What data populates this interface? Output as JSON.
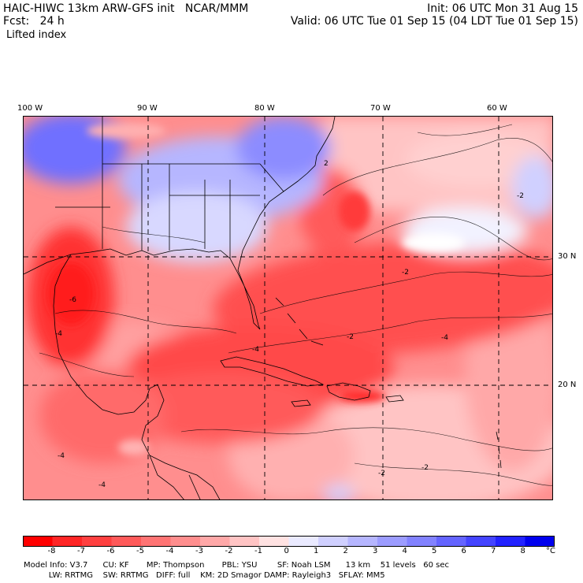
{
  "header": {
    "left_line1": "HAIC-HIWC 13km ARW-GFS init   NCAR/MMM",
    "left_line2": "Fcst:   24 h",
    "field": "Lifted index",
    "right_line1": "Init: 06 UTC Mon 31 Aug 15",
    "right_line2": "Valid: 06 UTC Tue 01 Sep 15 (04 LDT Tue 01 Sep 15)"
  },
  "map": {
    "lon_labels": [
      "100 W",
      "90 W",
      "80 W",
      "70 W",
      "60 W"
    ],
    "lat_labels": [
      "30 N",
      "20 N"
    ],
    "contour_labels": [
      "-2",
      "-4",
      "-6",
      "2"
    ]
  },
  "colorbar": {
    "unit": "°C",
    "levels": [
      "-8",
      "-7",
      "-6",
      "-5",
      "-4",
      "-3",
      "-2",
      "-1",
      "0",
      "1",
      "2",
      "3",
      "4",
      "5",
      "6",
      "7",
      "8"
    ],
    "colors": [
      "#ff0000",
      "#ff2626",
      "#ff4040",
      "#ff5a5a",
      "#ff7474",
      "#ff8e8e",
      "#ffa8a8",
      "#ffc4c4",
      "#ffe2e2",
      "#eaeaff",
      "#d0d0ff",
      "#b6b6ff",
      "#9c9cff",
      "#8282ff",
      "#6464ff",
      "#4444ff",
      "#2222ff",
      "#0000ee"
    ]
  },
  "footer": {
    "line1": "Model Info: V3.7      CU: KF       MP: Thompson       PBL: YSU        SF: Noah LSM      13 km    51 levels   60 sec",
    "line2": "          LW: RRTMG    SW: RRTMG   DIFF: full    KM: 2D Smagor DAMP: Rayleigh3   SFLAY: MM5"
  }
}
